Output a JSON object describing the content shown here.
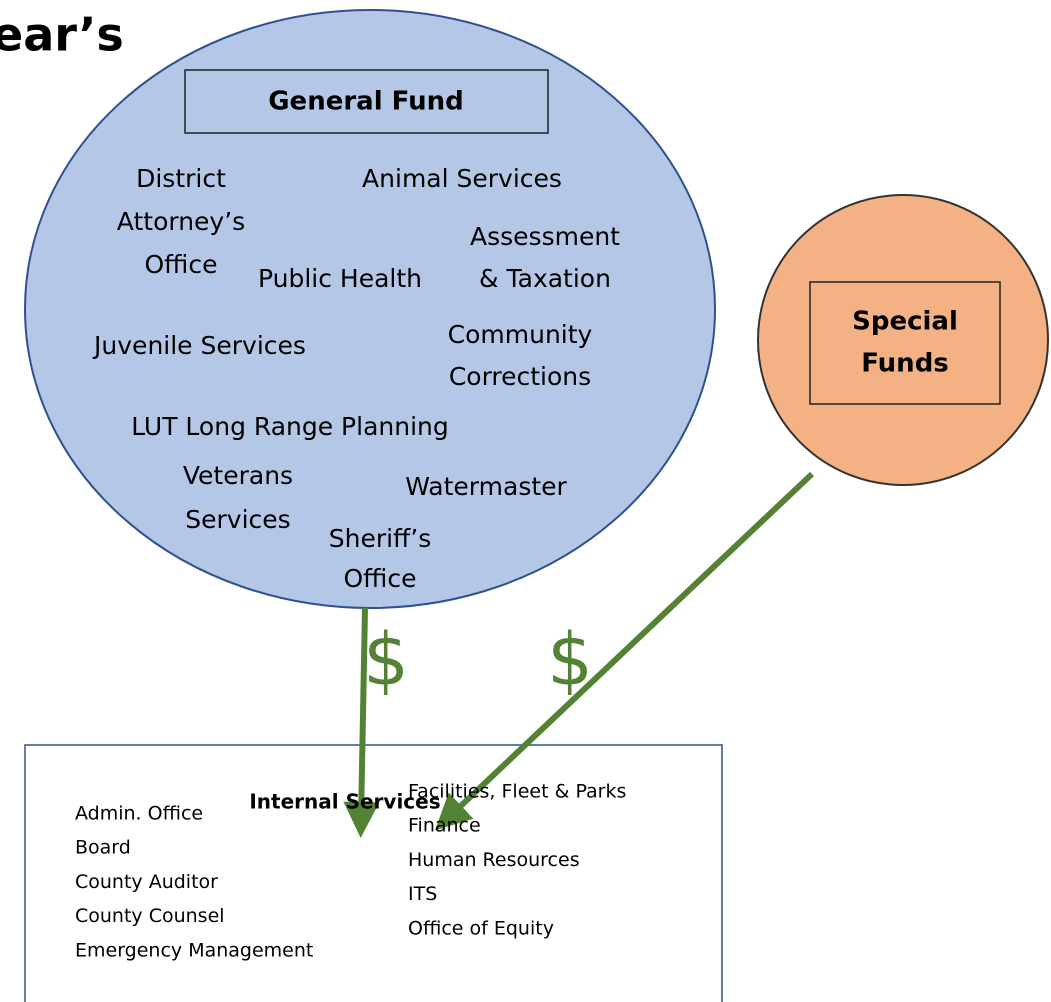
{
  "title": "ear’s",
  "general_fund": {
    "label": "General Fund",
    "departments": [
      {
        "lines": [
          "District",
          "Attorney’s",
          "Office"
        ]
      },
      {
        "lines": [
          "Animal Services"
        ]
      },
      {
        "lines": [
          "Assessment",
          "& Taxation"
        ]
      },
      {
        "lines": [
          "Public Health"
        ]
      },
      {
        "lines": [
          "Juvenile Services"
        ]
      },
      {
        "lines": [
          "Community",
          "Corrections"
        ]
      },
      {
        "lines": [
          "LUT Long Range Planning"
        ]
      },
      {
        "lines": [
          "Veterans",
          "Services"
        ]
      },
      {
        "lines": [
          "Watermaster"
        ]
      },
      {
        "lines": [
          "Sheriff’s",
          "Office"
        ]
      }
    ]
  },
  "special_funds": {
    "lines": [
      "Special",
      "Funds"
    ]
  },
  "flows": [
    "$",
    "$"
  ],
  "internal_services": {
    "title": "Internal Services",
    "left": [
      "Admin. Office",
      "Board",
      "County Auditor",
      "County Counsel",
      "Emergency Management"
    ],
    "right": [
      "Facilities, Fleet & Parks",
      "Finance",
      "Human Resources",
      "ITS",
      "Office of Equity"
    ]
  }
}
